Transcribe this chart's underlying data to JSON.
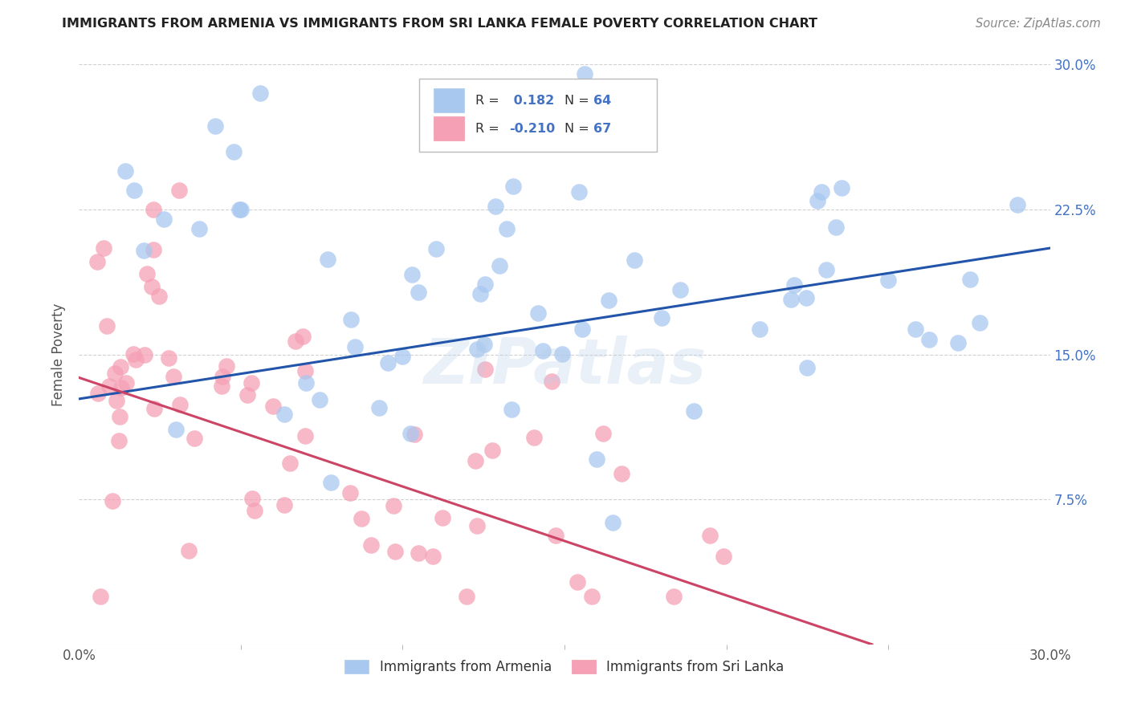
{
  "title": "IMMIGRANTS FROM ARMENIA VS IMMIGRANTS FROM SRI LANKA FEMALE POVERTY CORRELATION CHART",
  "source": "Source: ZipAtlas.com",
  "ylabel": "Female Poverty",
  "xlim": [
    0.0,
    0.3
  ],
  "ylim": [
    0.0,
    0.3
  ],
  "armenia_R": 0.182,
  "armenia_N": 64,
  "srilanka_R": -0.21,
  "srilanka_N": 67,
  "armenia_color": "#a8c8f0",
  "srilanka_color": "#f5a0b5",
  "armenia_line_color": "#2255aa",
  "srilanka_line_color": "#cc4466",
  "legend_label_armenia": "Immigrants from Armenia",
  "legend_label_srilanka": "Immigrants from Sri Lanka",
  "watermark": "ZIPatlas",
  "background_color": "#ffffff",
  "grid_color": "#cccccc",
  "title_color": "#222222",
  "right_tick_color": "#4472c4",
  "arm_line_x0": 0.0,
  "arm_line_y0": 0.127,
  "arm_line_x1": 0.3,
  "arm_line_y1": 0.205,
  "sri_line_x0": 0.0,
  "sri_line_y0": 0.138,
  "sri_line_x1": 0.245,
  "sri_line_y1": 0.0
}
